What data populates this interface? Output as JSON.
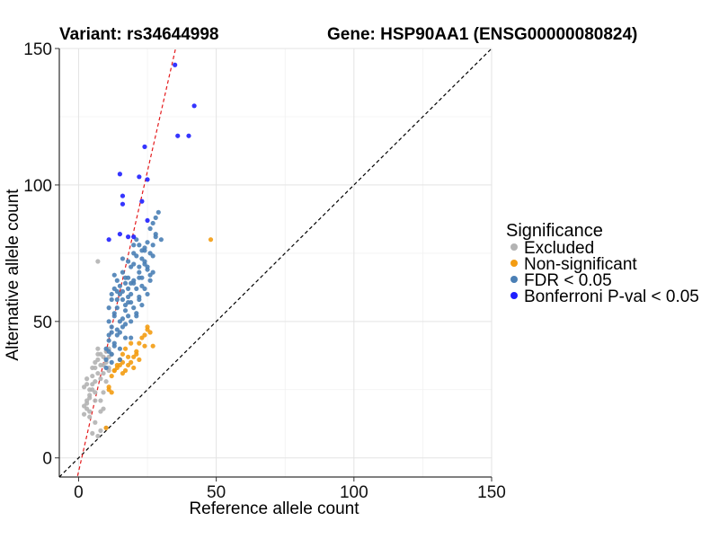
{
  "chart_data": {
    "type": "scatter",
    "title_left": "Variant: rs34644998",
    "title_right": "Gene: HSP90AA1 (ENSG00000080824)",
    "xlabel": "Reference allele count",
    "ylabel": "Alternative allele count",
    "xlim": [
      -7,
      150
    ],
    "ylim": [
      -7,
      150
    ],
    "x_ticks": [
      0,
      50,
      100,
      150
    ],
    "y_ticks": [
      0,
      50,
      100,
      150
    ],
    "x_tick_labels": [
      "0",
      "50",
      "100",
      "150"
    ],
    "y_tick_labels": [
      "0",
      "50",
      "100",
      "150"
    ],
    "grid": true,
    "reference_line": {
      "label": "y = x",
      "slope": 1,
      "intercept": 0,
      "color": "#000000",
      "style": "dashed"
    },
    "fit_line": {
      "slope": 4.4,
      "intercept": -5,
      "color": "#e41a1c",
      "style": "dashed"
    },
    "legend": {
      "title": "Significance",
      "position": "right",
      "entries": [
        {
          "key": "excluded",
          "label": "Excluded",
          "color": "#b3b3b3"
        },
        {
          "key": "nonsig",
          "label": "Non-significant",
          "color": "#f39c12"
        },
        {
          "key": "fdr",
          "label": "FDR < 0.05",
          "color": "#4a7fb5"
        },
        {
          "key": "bonf",
          "label": "Bonferroni P-val < 0.05",
          "color": "#1f1fff"
        }
      ]
    },
    "series": [
      {
        "name": "Excluded",
        "key": "excluded",
        "x": [
          2,
          3,
          3,
          4,
          4,
          5,
          5,
          6,
          6,
          7,
          7,
          8,
          8,
          9,
          9,
          10,
          10,
          11,
          11,
          3,
          4,
          5,
          6,
          7,
          8,
          9,
          10,
          11,
          12,
          2,
          4,
          6,
          8,
          10,
          5,
          7,
          9,
          11,
          3,
          6,
          8,
          4,
          2,
          7,
          3,
          5,
          9,
          6,
          8,
          7
        ],
        "y": [
          16,
          18,
          20,
          22,
          25,
          27,
          30,
          24,
          33,
          36,
          38,
          29,
          34,
          31,
          37,
          35,
          39,
          33,
          40,
          21,
          17,
          25,
          28,
          31,
          21,
          24,
          28,
          32,
          38,
          19,
          15,
          13,
          10,
          11,
          9,
          8,
          34,
          37,
          27,
          21,
          17,
          23,
          26,
          72,
          29,
          33,
          18,
          35,
          38,
          40
        ]
      },
      {
        "name": "Non-significant",
        "key": "nonsig",
        "x": [
          11,
          12,
          13,
          14,
          15,
          16,
          17,
          18,
          19,
          20,
          21,
          22,
          23,
          24,
          25,
          26,
          27,
          12,
          14,
          16,
          18,
          20,
          22,
          25,
          15,
          17,
          19,
          10,
          11,
          48,
          13,
          21,
          24,
          16
        ],
        "y": [
          26,
          30,
          32,
          34,
          36,
          38,
          40,
          37,
          35,
          33,
          39,
          42,
          44,
          45,
          47,
          46,
          41,
          24,
          33,
          31,
          34,
          37,
          36,
          48,
          34,
          32,
          42,
          11,
          25,
          80,
          32,
          38,
          41,
          35
        ]
      },
      {
        "name": "FDR < 0.05",
        "key": "fdr",
        "x": [
          10,
          10,
          11,
          11,
          11,
          12,
          12,
          12,
          13,
          13,
          13,
          14,
          14,
          14,
          15,
          15,
          15,
          16,
          16,
          16,
          17,
          17,
          17,
          18,
          18,
          18,
          19,
          19,
          19,
          20,
          20,
          20,
          21,
          21,
          21,
          22,
          22,
          22,
          23,
          23,
          23,
          24,
          24,
          25,
          25,
          26,
          26,
          27,
          27,
          28,
          10,
          11,
          12,
          13,
          14,
          15,
          16,
          17,
          18,
          19,
          20,
          21,
          22,
          23,
          24,
          25,
          26,
          27,
          28,
          12,
          14,
          16,
          18,
          20,
          22,
          24,
          11,
          13,
          15,
          17,
          19,
          21,
          23,
          25,
          27,
          29,
          12,
          16,
          20,
          24,
          28,
          14,
          18,
          22,
          26,
          30,
          15,
          13,
          17,
          19
        ],
        "y": [
          33,
          40,
          45,
          50,
          55,
          38,
          48,
          58,
          42,
          52,
          62,
          45,
          55,
          65,
          40,
          50,
          60,
          48,
          58,
          68,
          44,
          54,
          64,
          52,
          62,
          72,
          50,
          60,
          70,
          55,
          65,
          75,
          52,
          62,
          80,
          58,
          68,
          78,
          56,
          66,
          76,
          62,
          72,
          60,
          70,
          65,
          75,
          68,
          78,
          82,
          36,
          43,
          46,
          53,
          58,
          63,
          61,
          66,
          59,
          64,
          71,
          74,
          66,
          73,
          77,
          79,
          84,
          86,
          88,
          35,
          47,
          51,
          57,
          64,
          70,
          76,
          39,
          41,
          46,
          49,
          57,
          53,
          63,
          69,
          74,
          90,
          60,
          73,
          78,
          71,
          81,
          61,
          66,
          59,
          67,
          80,
          36,
          67,
          56,
          44
        ]
      },
      {
        "name": "Bonferroni P-val < 0.05",
        "key": "bonf",
        "x": [
          35,
          42,
          40,
          15,
          16,
          24,
          22,
          25,
          11,
          15,
          20,
          23,
          18,
          36,
          25,
          16
        ],
        "y": [
          144,
          129,
          118,
          104,
          93,
          114,
          103,
          102,
          80,
          82,
          81,
          94,
          81,
          118,
          87,
          96
        ]
      }
    ]
  }
}
